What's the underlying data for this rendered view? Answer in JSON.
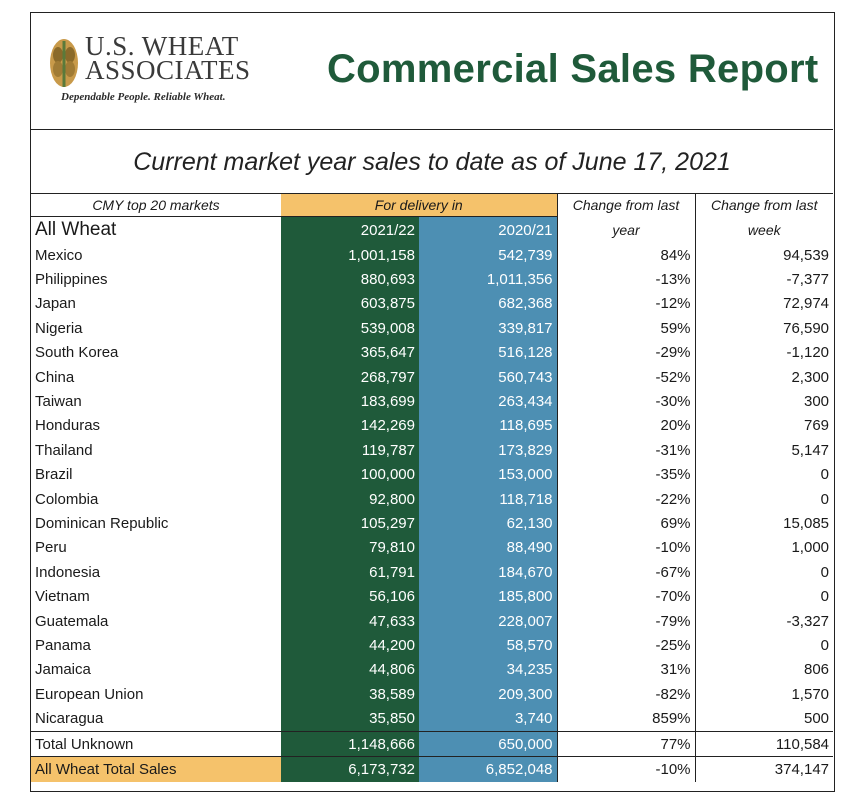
{
  "logo": {
    "line1": "U.S. WHEAT",
    "line2": "ASSOCIATES",
    "tagline": "Dependable People. Reliable Wheat."
  },
  "title": "Commercial Sales Report",
  "subtitle": "Current market year sales to date as of June 17, 2021",
  "table": {
    "header_markets": "CMY top 20 markets",
    "header_delivery": "For delivery in",
    "header_change_year_1": "Change from last",
    "header_change_year_2": "year",
    "header_change_week_1": "Change from last",
    "header_change_week_2": "week",
    "header_all_wheat": "All Wheat",
    "header_col1": "2021/22",
    "header_col2": "2020/21",
    "rows": [
      {
        "market": "Mexico",
        "y2122": "1,001,158",
        "y2021": "542,739",
        "chg_year": "84%",
        "chg_week": "94,539"
      },
      {
        "market": "Philippines",
        "y2122": "880,693",
        "y2021": "1,011,356",
        "chg_year": "-13%",
        "chg_week": "-7,377"
      },
      {
        "market": "Japan",
        "y2122": "603,875",
        "y2021": "682,368",
        "chg_year": "-12%",
        "chg_week": "72,974"
      },
      {
        "market": "Nigeria",
        "y2122": "539,008",
        "y2021": "339,817",
        "chg_year": "59%",
        "chg_week": "76,590"
      },
      {
        "market": "South Korea",
        "y2122": "365,647",
        "y2021": "516,128",
        "chg_year": "-29%",
        "chg_week": "-1,120"
      },
      {
        "market": "China",
        "y2122": "268,797",
        "y2021": "560,743",
        "chg_year": "-52%",
        "chg_week": "2,300"
      },
      {
        "market": "Taiwan",
        "y2122": "183,699",
        "y2021": "263,434",
        "chg_year": "-30%",
        "chg_week": "300"
      },
      {
        "market": "Honduras",
        "y2122": "142,269",
        "y2021": "118,695",
        "chg_year": "20%",
        "chg_week": "769"
      },
      {
        "market": "Thailand",
        "y2122": "119,787",
        "y2021": "173,829",
        "chg_year": "-31%",
        "chg_week": "5,147"
      },
      {
        "market": "Brazil",
        "y2122": "100,000",
        "y2021": "153,000",
        "chg_year": "-35%",
        "chg_week": "0"
      },
      {
        "market": "Colombia",
        "y2122": "92,800",
        "y2021": "118,718",
        "chg_year": "-22%",
        "chg_week": "0"
      },
      {
        "market": "Dominican Republic",
        "y2122": "105,297",
        "y2021": "62,130",
        "chg_year": "69%",
        "chg_week": "15,085"
      },
      {
        "market": "Peru",
        "y2122": "79,810",
        "y2021": "88,490",
        "chg_year": "-10%",
        "chg_week": "1,000"
      },
      {
        "market": "Indonesia",
        "y2122": "61,791",
        "y2021": "184,670",
        "chg_year": "-67%",
        "chg_week": "0"
      },
      {
        "market": "Vietnam",
        "y2122": "56,106",
        "y2021": "185,800",
        "chg_year": "-70%",
        "chg_week": "0"
      },
      {
        "market": "Guatemala",
        "y2122": "47,633",
        "y2021": "228,007",
        "chg_year": "-79%",
        "chg_week": "-3,327"
      },
      {
        "market": "Panama",
        "y2122": "44,200",
        "y2021": "58,570",
        "chg_year": "-25%",
        "chg_week": "0"
      },
      {
        "market": "Jamaica",
        "y2122": "44,806",
        "y2021": "34,235",
        "chg_year": "31%",
        "chg_week": "806"
      },
      {
        "market": "European Union",
        "y2122": "38,589",
        "y2021": "209,300",
        "chg_year": "-82%",
        "chg_week": "1,570"
      },
      {
        "market": "Nicaragua",
        "y2122": "35,850",
        "y2021": "3,740",
        "chg_year": "859%",
        "chg_week": "500"
      }
    ],
    "total_unknown": {
      "market": "Total Unknown",
      "y2122": "1,148,666",
      "y2021": "650,000",
      "chg_year": "77%",
      "chg_week": "110,584"
    },
    "grand_total": {
      "market": "All Wheat Total Sales",
      "y2122": "6,173,732",
      "y2021": "6,852,048",
      "chg_year": "-10%",
      "chg_week": "374,147"
    }
  },
  "colors": {
    "dark_green": "#1f5a3a",
    "steel_blue": "#4d8fb3",
    "gold": "#f5c26b"
  }
}
